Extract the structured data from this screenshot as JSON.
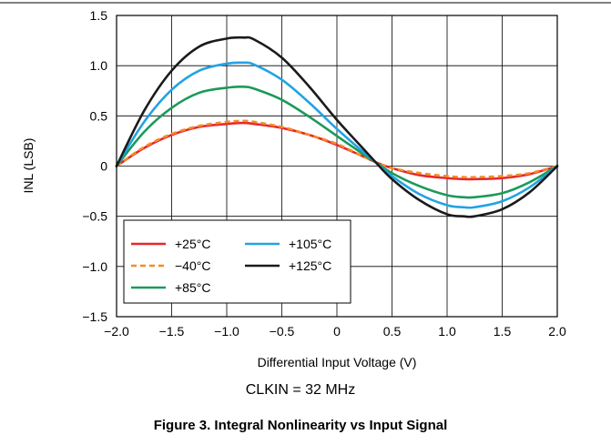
{
  "chart_data": {
    "type": "line",
    "title": "",
    "xlabel": "Differential Input Voltage (V)",
    "ylabel": "INL (LSB)",
    "xlim": [
      -2.0,
      2.0
    ],
    "ylim": [
      -1.5,
      1.5
    ],
    "x_ticks": [
      -2.0,
      -1.5,
      -1.0,
      -0.5,
      0,
      0.5,
      1.0,
      1.5,
      2.0
    ],
    "x_tick_labels": [
      "−2.0",
      "−1.5",
      "−1.0",
      "−0.5",
      "0",
      "0.5",
      "1.0",
      "1.5",
      "2.0"
    ],
    "y_ticks": [
      1.5,
      1.0,
      0.5,
      0,
      -0.5,
      -1.0,
      -1.5
    ],
    "y_tick_labels": [
      "1.5",
      "1.0",
      "0.5",
      "0",
      "−0.5",
      "−1.0",
      "−1.5"
    ],
    "grid": true,
    "legend_position": "bottom-left",
    "x": [
      -2.0,
      -1.75,
      -1.5,
      -1.25,
      -1.0,
      -0.85,
      -0.75,
      -0.5,
      -0.25,
      0,
      0.25,
      0.35,
      0.5,
      0.75,
      1.0,
      1.15,
      1.25,
      1.5,
      1.75,
      2.0
    ],
    "series": [
      {
        "name": "+25°C",
        "color": "#e8262b",
        "dash": "solid",
        "values": [
          0,
          0.18,
          0.31,
          0.39,
          0.42,
          0.43,
          0.42,
          0.38,
          0.31,
          0.21,
          0.09,
          0.04,
          -0.02,
          -0.09,
          -0.12,
          -0.13,
          -0.13,
          -0.12,
          -0.08,
          0
        ]
      },
      {
        "name": "−40°C",
        "color": "#f28c28",
        "dash": "dashed",
        "values": [
          0,
          0.19,
          0.32,
          0.4,
          0.44,
          0.45,
          0.44,
          0.39,
          0.31,
          0.22,
          0.09,
          0.04,
          -0.02,
          -0.07,
          -0.1,
          -0.11,
          -0.11,
          -0.1,
          -0.07,
          0
        ]
      },
      {
        "name": "+85°C",
        "color": "#1a9a5a",
        "dash": "solid",
        "values": [
          0,
          0.34,
          0.58,
          0.73,
          0.78,
          0.79,
          0.77,
          0.66,
          0.49,
          0.3,
          0.11,
          0.04,
          -0.07,
          -0.2,
          -0.29,
          -0.31,
          -0.31,
          -0.27,
          -0.16,
          0
        ]
      },
      {
        "name": "+105°C",
        "color": "#21a3e3",
        "dash": "solid",
        "values": [
          0,
          0.44,
          0.76,
          0.95,
          1.02,
          1.03,
          1.01,
          0.86,
          0.63,
          0.37,
          0.13,
          0.04,
          -0.1,
          -0.28,
          -0.39,
          -0.41,
          -0.41,
          -0.35,
          -0.21,
          0
        ]
      },
      {
        "name": "+125°C",
        "color": "#1b1b1b",
        "dash": "solid",
        "values": [
          0,
          0.55,
          0.95,
          1.19,
          1.27,
          1.28,
          1.26,
          1.08,
          0.79,
          0.46,
          0.16,
          0.04,
          -0.13,
          -0.34,
          -0.48,
          -0.5,
          -0.5,
          -0.43,
          -0.26,
          0
        ]
      }
    ]
  },
  "annotation": "CLKIN = 32 MHz",
  "caption": "Figure 3. Integral Nonlinearity vs Input Signal"
}
